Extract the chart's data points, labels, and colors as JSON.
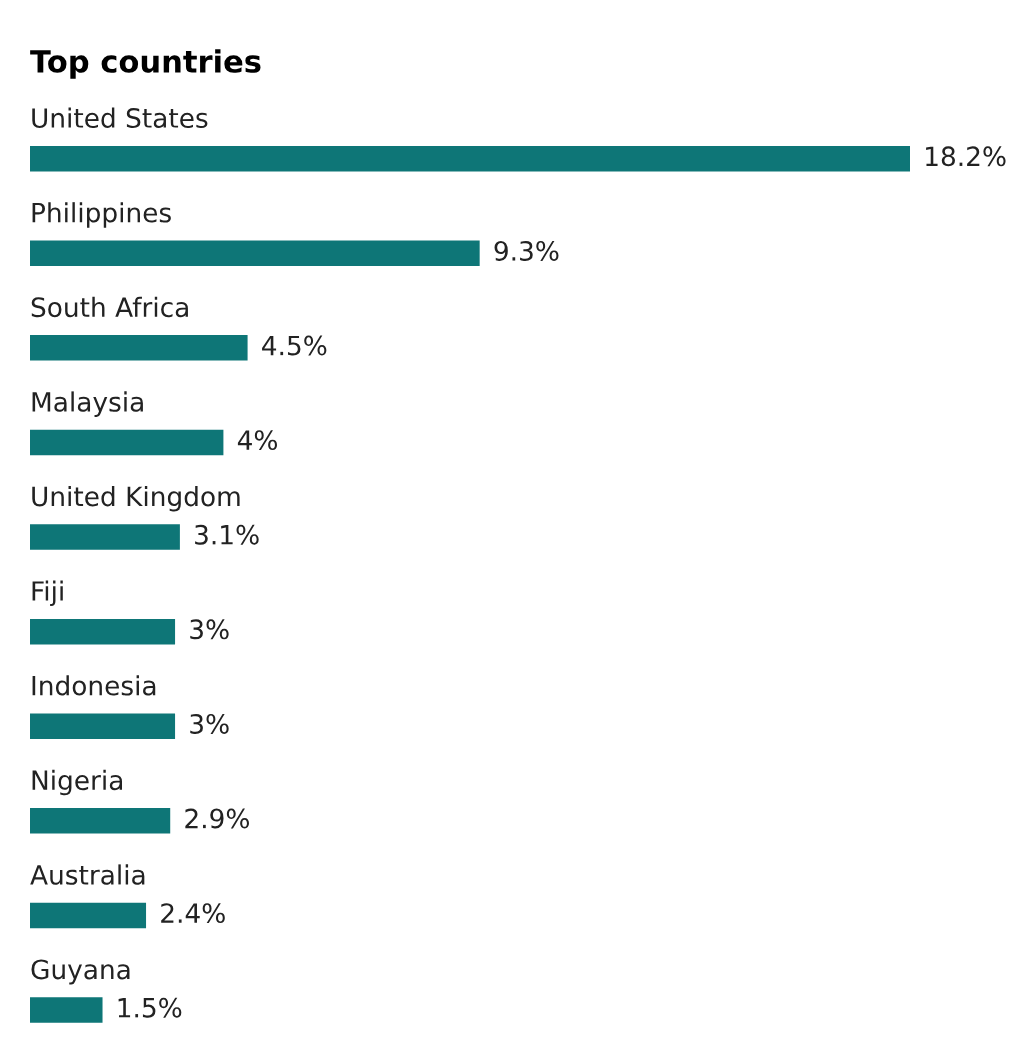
{
  "chart_data": {
    "type": "bar",
    "orientation": "horizontal",
    "title": "Top countries",
    "categories": [
      "United States",
      "Philippines",
      "South Africa",
      "Malaysia",
      "United Kingdom",
      "Fiji",
      "Indonesia",
      "Nigeria",
      "Australia",
      "Guyana"
    ],
    "values": [
      18.2,
      9.3,
      4.5,
      4,
      3.1,
      3,
      3,
      2.9,
      2.4,
      1.5
    ],
    "value_labels": [
      "18.2%",
      "9.3%",
      "4.5%",
      "4%",
      "3.1%",
      "3%",
      "3%",
      "2.9%",
      "2.4%",
      "1.5%"
    ],
    "color": "#0e7677"
  }
}
